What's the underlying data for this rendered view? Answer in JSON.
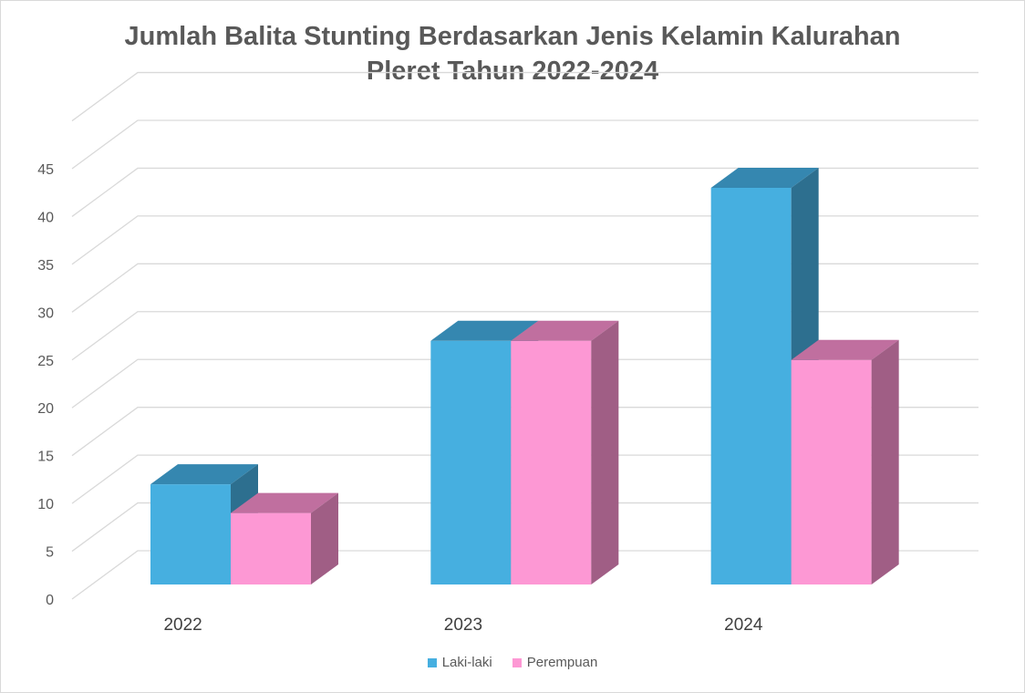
{
  "chart_data": {
    "type": "bar",
    "style": "3d-clustered-column",
    "title_lines": [
      "Jumlah Balita Stunting Berdasarkan Jenis Kelamin Kalurahan",
      "Pleret Tahun 2022-2024"
    ],
    "categories": [
      "2022",
      "2023",
      "2024"
    ],
    "series": [
      {
        "name": "Laki-laki",
        "values": [
          12,
          27,
          43
        ],
        "color": "#46afe0",
        "top_color": "#3587b0",
        "side_color": "#2d6f8f"
      },
      {
        "name": "Perempuan",
        "values": [
          9,
          27,
          25
        ],
        "color": "#fd98d4",
        "top_color": "#c06f9f",
        "side_color": "#a05e85"
      }
    ],
    "ylim": [
      0,
      45
    ],
    "yticks": [
      "0",
      "5",
      "10",
      "15",
      "20",
      "25",
      "30",
      "35",
      "40",
      "45"
    ],
    "grid": true,
    "legend_position": "bottom"
  }
}
